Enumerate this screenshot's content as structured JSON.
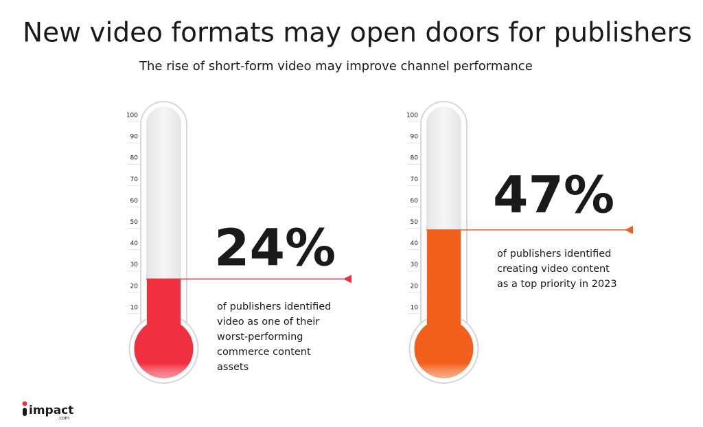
{
  "title": "New video formats may open doors for publishers",
  "subtitle": "The rise of short-form video may improve channel performance",
  "logo": {
    "name": "impact",
    "suffix": ".com"
  },
  "chart_data": [
    {
      "type": "thermometer",
      "values": [
        24
      ],
      "value_labels": [
        "24%"
      ],
      "color": "#f0303f",
      "ylim": [
        0,
        100
      ],
      "yticks": [
        10,
        20,
        30,
        40,
        50,
        60,
        70,
        80,
        90,
        100
      ],
      "annotation_lines": [
        "of publishers identified",
        "video as one of their",
        "worst-performing",
        "commerce content",
        "assets"
      ]
    },
    {
      "type": "thermometer",
      "values": [
        47
      ],
      "value_labels": [
        "47%"
      ],
      "color": "#f2601b",
      "ylim": [
        0,
        100
      ],
      "yticks": [
        10,
        20,
        30,
        40,
        50,
        60,
        70,
        80,
        90,
        100
      ],
      "annotation_lines": [
        "of publishers identified",
        "creating video content",
        "as a top priority in 2023"
      ]
    }
  ]
}
